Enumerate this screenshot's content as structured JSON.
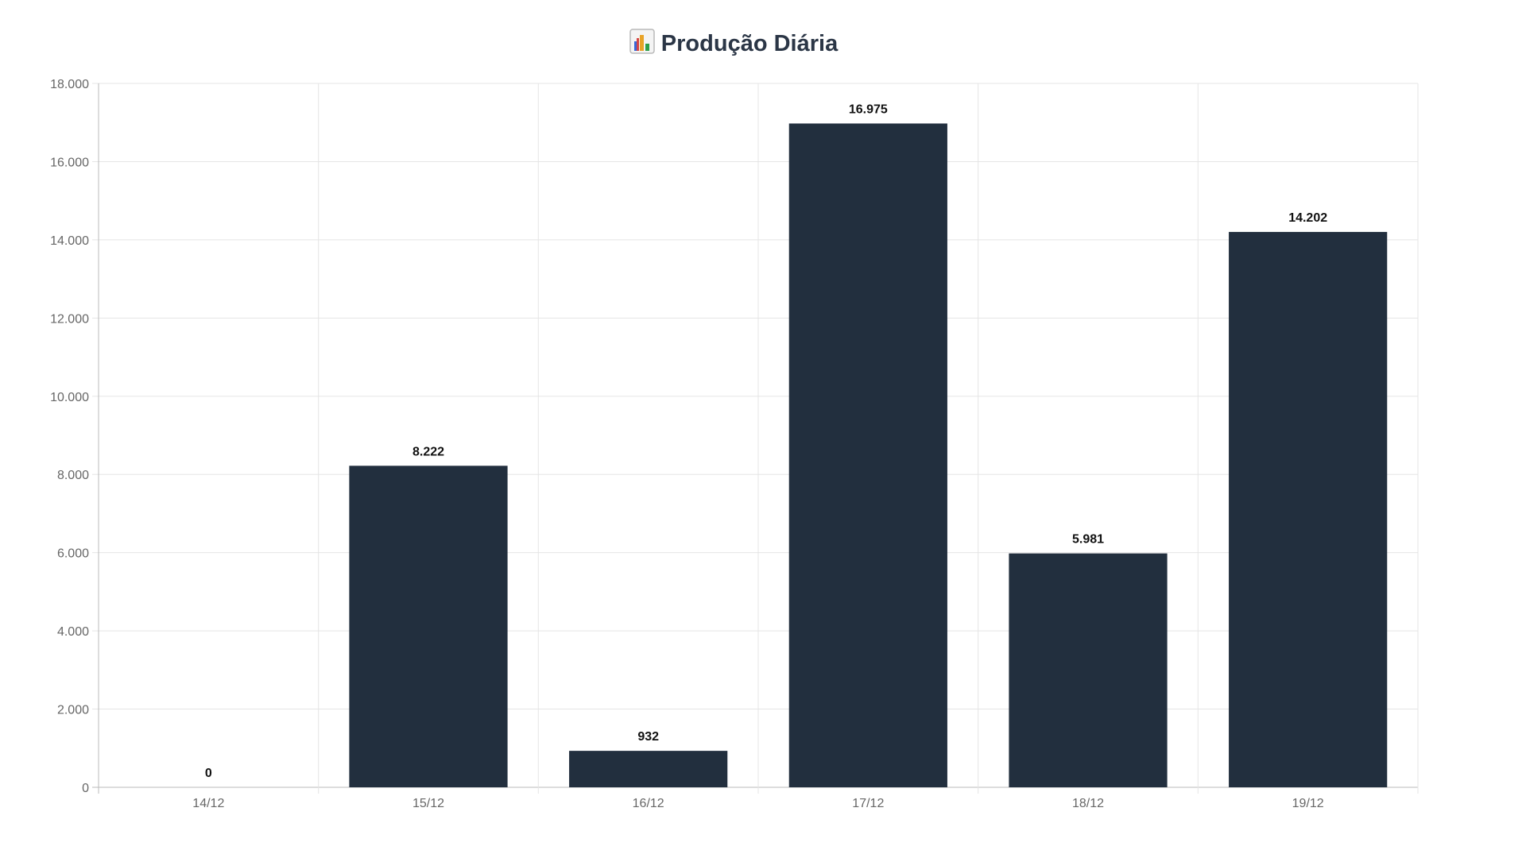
{
  "chart_data": {
    "type": "bar",
    "title": "Produção Diária",
    "title_icon": "bar-chart-emoji-icon",
    "categories": [
      "14/12",
      "15/12",
      "16/12",
      "17/12",
      "18/12",
      "19/12"
    ],
    "values": [
      0,
      8222,
      932,
      16975,
      5981,
      14202
    ],
    "value_labels": [
      "0",
      "8.222",
      "932",
      "16.975",
      "5.981",
      "14.202"
    ],
    "y_ticks": [
      {
        "value": 0,
        "label": "0"
      },
      {
        "value": 2000,
        "label": "2.000"
      },
      {
        "value": 4000,
        "label": "4.000"
      },
      {
        "value": 6000,
        "label": "6.000"
      },
      {
        "value": 8000,
        "label": "8.000"
      },
      {
        "value": 10000,
        "label": "10.000"
      },
      {
        "value": 12000,
        "label": "12.000"
      },
      {
        "value": 14000,
        "label": "14.000"
      },
      {
        "value": 16000,
        "label": "16.000"
      },
      {
        "value": 18000,
        "label": "18.000"
      }
    ],
    "ylim": [
      0,
      18000
    ],
    "xlabel": "",
    "ylabel": "",
    "grid": true,
    "legend": false,
    "bar_color": "#222f3e",
    "grid_color": "#e5e5e5"
  }
}
